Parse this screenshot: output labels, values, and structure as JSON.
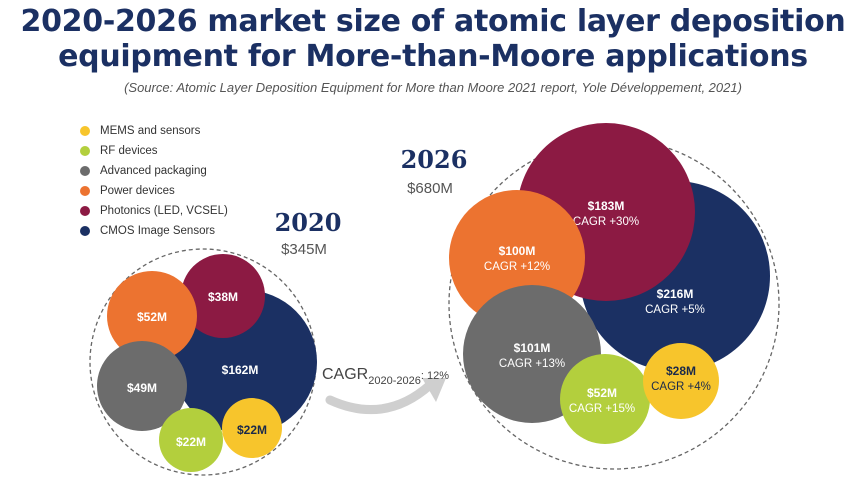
{
  "title_line1": "2020-2026 market size of atomic layer deposition",
  "title_line2": "equipment for More-than-Moore applications",
  "source": "(Source: Atomic Layer Deposition Equipment for More than Moore 2021 report, Yole Développement, 2021)",
  "colors": {
    "title": "#1b3063",
    "MEMS and sensors": "#f7c52c",
    "RF devices": "#b3cf3d",
    "Advanced packaging": "#6c6c6c",
    "Power devices": "#ec7330",
    "Photonics (LED, VCSEL)": "#8c1a43",
    "CMOS Image Sensors": "#1b3063"
  },
  "cagr_label": {
    "main": "CAGR",
    "sub": "2020-2026",
    "value": ": 12%"
  },
  "chart_data": {
    "type": "bubble",
    "legend": [
      "MEMS and sensors",
      "RF devices",
      "Advanced packaging",
      "Power devices",
      "Photonics (LED, VCSEL)",
      "CMOS Image Sensors"
    ],
    "legend_position": "top-left",
    "years": [
      {
        "year": "2020",
        "total": "$345M",
        "segments": [
          {
            "category": "CMOS Image Sensors",
            "label": "$162M"
          },
          {
            "category": "Photonics (LED, VCSEL)",
            "label": "$38M"
          },
          {
            "category": "Power devices",
            "label": "$52M"
          },
          {
            "category": "Advanced packaging",
            "label": "$49M"
          },
          {
            "category": "RF devices",
            "label": "$22M"
          },
          {
            "category": "MEMS and sensors",
            "label": "$22M"
          }
        ]
      },
      {
        "year": "2026",
        "total": "$680M",
        "segments": [
          {
            "category": "CMOS Image Sensors",
            "label": "$216M",
            "cagr": "CAGR +5%"
          },
          {
            "category": "Photonics (LED, VCSEL)",
            "label": "$183M",
            "cagr": "CAGR +30%"
          },
          {
            "category": "Power devices",
            "label": "$100M",
            "cagr": "CAGR +12%"
          },
          {
            "category": "Advanced packaging",
            "label": "$101M",
            "cagr": "CAGR +13%"
          },
          {
            "category": "RF devices",
            "label": "$52M",
            "cagr": "CAGR +15%"
          },
          {
            "category": "MEMS and sensors",
            "label": "$28M",
            "cagr": "CAGR +4%"
          }
        ]
      }
    ]
  }
}
